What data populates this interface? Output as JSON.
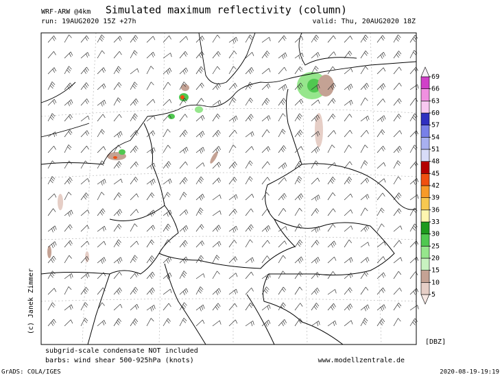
{
  "header": {
    "model": "WRF-ARW @4km",
    "title": "Simulated maximum reflectivity (column)",
    "run": "run: 19AUG2020 15Z +27h",
    "valid": "valid: Thu, 20AUG2020 18Z"
  },
  "copyright": "(c) Janek Zimmer",
  "colorbar": {
    "unit": "[DBZ]",
    "labels": [
      5,
      10,
      15,
      20,
      25,
      30,
      33,
      36,
      39,
      42,
      45,
      48,
      51,
      54,
      57,
      60,
      63,
      66,
      69
    ],
    "colors": [
      "#f6e8e4",
      "#e6cec6",
      "#c4a294",
      "#c8f2c0",
      "#96e68c",
      "#50c850",
      "#1e9a1e",
      "#fff6b0",
      "#f8c850",
      "#f89a28",
      "#f05010",
      "#b40000",
      "#d8dcf8",
      "#a8b0f0",
      "#7880e8",
      "#3030c0",
      "#f8c8f0",
      "#f090e0",
      "#d040c8",
      "#f8f0f8"
    ]
  },
  "footer": {
    "note1": "subgrid-scale condensate NOT included",
    "note2": "barbs: wind shear 500-925hPa (knots)",
    "site": "www.modellzentrale.de",
    "grads": "GrADS: COLA/IGES",
    "stamp": "2020-08-19-19:19"
  }
}
